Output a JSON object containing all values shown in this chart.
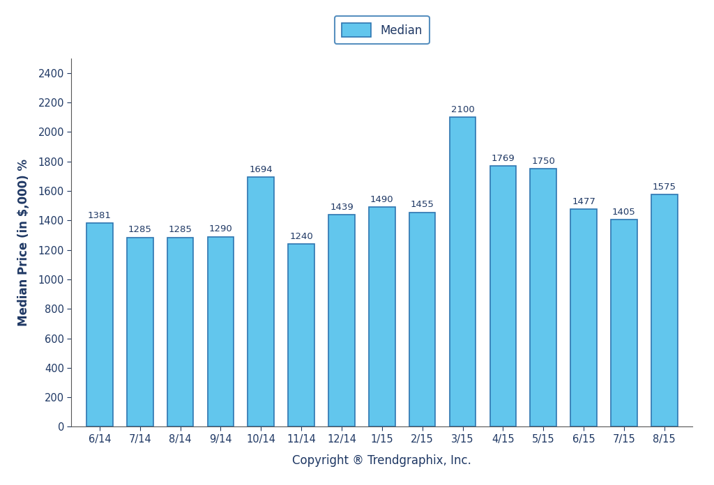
{
  "categories": [
    "6/14",
    "7/14",
    "8/14",
    "9/14",
    "10/14",
    "11/14",
    "12/14",
    "1/15",
    "2/15",
    "3/15",
    "4/15",
    "5/15",
    "6/15",
    "7/15",
    "8/15"
  ],
  "values": [
    1381,
    1285,
    1285,
    1290,
    1694,
    1240,
    1439,
    1490,
    1455,
    2100,
    1769,
    1750,
    1477,
    1405,
    1575
  ],
  "bar_color": "#62C6ED",
  "bar_edge_color": "#2E75B0",
  "legend_edge_color": "#2E75B0",
  "ylabel": "Median Price (in $,000) %",
  "xlabel": "Copyright ® Trendgraphix, Inc.",
  "legend_label": "Median",
  "ylim": [
    0,
    2500
  ],
  "yticks": [
    0,
    200,
    400,
    600,
    800,
    1000,
    1200,
    1400,
    1600,
    1800,
    2000,
    2200,
    2400
  ],
  "bar_width": 0.65,
  "label_fontsize": 9.5,
  "axis_label_fontsize": 12,
  "tick_fontsize": 10.5,
  "value_label_color": "#1F3864",
  "axis_text_color": "#1F3864",
  "background_color": "#FFFFFF"
}
